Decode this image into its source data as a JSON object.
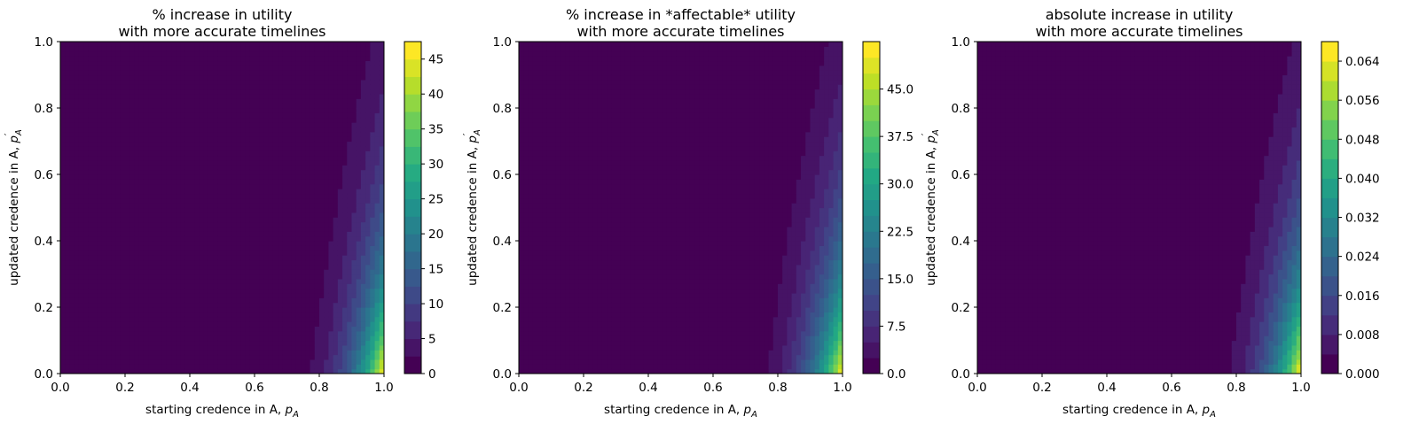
{
  "chart_data": [
    {
      "type": "contour",
      "title_lines": [
        "% increase in utility",
        "with more accurate timelines"
      ],
      "xlabel": "starting credence in A,",
      "xlabel_symbol": "p",
      "xlabel_sub": "A",
      "ylabel": "updated credence in A,",
      "ylabel_symbol": "p",
      "ylabel_sub": "A",
      "ylabel_prime": "′",
      "xlim": [
        0.0,
        1.0
      ],
      "ylim": [
        0.0,
        1.0
      ],
      "xticks": [
        "0.0",
        "0.2",
        "0.4",
        "0.6",
        "0.8",
        "1.0"
      ],
      "yticks": [
        "0.0",
        "0.2",
        "0.4",
        "0.6",
        "0.8",
        "1.0"
      ],
      "colorbar": {
        "colormap": "viridis",
        "range": [
          0,
          47.5
        ],
        "levels": 19,
        "tick_values": [
          0,
          5,
          10,
          15,
          20,
          25,
          30,
          35,
          40,
          45
        ],
        "tick_labels": [
          "0",
          "5",
          "10",
          "15",
          "20",
          "25",
          "30",
          "35",
          "40",
          "45"
        ]
      }
    },
    {
      "type": "contour",
      "title_lines": [
        "% increase in *affectable* utility",
        "with more accurate timelines"
      ],
      "xlabel": "starting credence in A,",
      "xlabel_symbol": "p",
      "xlabel_sub": "A",
      "ylabel": "updated credence in A,",
      "ylabel_symbol": "p",
      "ylabel_sub": "A",
      "ylabel_prime": "′",
      "xlim": [
        0.0,
        1.0
      ],
      "ylim": [
        0.0,
        1.0
      ],
      "xticks": [
        "0.0",
        "0.2",
        "0.4",
        "0.6",
        "0.8",
        "1.0"
      ],
      "yticks": [
        "0.0",
        "0.2",
        "0.4",
        "0.6",
        "0.8",
        "1.0"
      ],
      "colorbar": {
        "colormap": "viridis",
        "range": [
          0,
          52.5
        ],
        "levels": 21,
        "tick_values": [
          0,
          7.5,
          15,
          22.5,
          30,
          37.5,
          45
        ],
        "tick_labels": [
          "0.0",
          "7.5",
          "15.0",
          "22.5",
          "30.0",
          "37.5",
          "45.0"
        ]
      }
    },
    {
      "type": "contour",
      "title_lines": [
        "absolute increase in utility",
        "with more accurate timelines"
      ],
      "xlabel": "starting credence in A,",
      "xlabel_symbol": "p",
      "xlabel_sub": "A",
      "ylabel": "updated credence in A,",
      "ylabel_symbol": "p",
      "ylabel_sub": "A",
      "ylabel_prime": "′",
      "xlim": [
        0.0,
        1.0
      ],
      "ylim": [
        0.0,
        1.0
      ],
      "xticks": [
        "0.0",
        "0.2",
        "0.4",
        "0.6",
        "0.8",
        "1.0"
      ],
      "yticks": [
        "0.0",
        "0.2",
        "0.4",
        "0.6",
        "0.8",
        "1.0"
      ],
      "colorbar": {
        "colormap": "viridis",
        "range": [
          0,
          0.068
        ],
        "levels": 17,
        "tick_values": [
          0,
          0.008,
          0.016,
          0.024,
          0.032,
          0.04,
          0.048,
          0.056,
          0.064
        ],
        "tick_labels": [
          "0.000",
          "0.008",
          "0.016",
          "0.024",
          "0.032",
          "0.040",
          "0.048",
          "0.056",
          "0.064"
        ]
      }
    }
  ]
}
